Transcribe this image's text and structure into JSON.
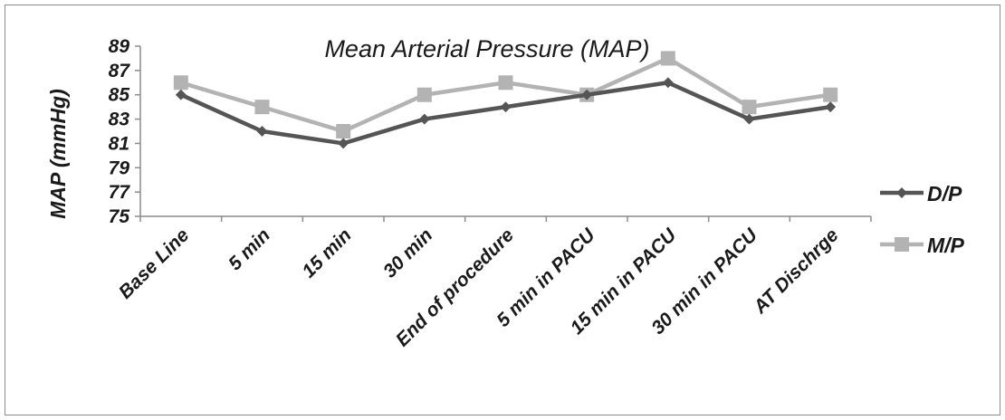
{
  "chart_data": {
    "type": "line",
    "title": "Mean Arterial Pressure (MAP)",
    "xlabel": "",
    "ylabel": "MAP (mmHg)",
    "categories": [
      "Base Line",
      "5 min",
      "15 min",
      "30 min",
      "End of procedure",
      "5 min in PACU",
      "15 min in PACU",
      "30 min in PACU",
      "AT Dischrge"
    ],
    "ylim": [
      75,
      89
    ],
    "yticks": [
      75,
      77,
      79,
      81,
      83,
      85,
      87,
      89
    ],
    "ytick_labels": [
      "75",
      "77",
      "79",
      "81",
      "83",
      "85",
      "87",
      "89"
    ],
    "grid": false,
    "legend_position": "right",
    "series": [
      {
        "name": "D/P",
        "values": [
          85,
          82,
          81,
          83,
          84,
          85,
          86,
          83,
          84
        ],
        "color": "#555555",
        "marker": "diamond"
      },
      {
        "name": "M/P",
        "values": [
          86,
          84,
          82,
          85,
          86,
          85,
          88,
          84,
          85
        ],
        "color": "#b3b3b3",
        "marker": "square"
      }
    ]
  }
}
